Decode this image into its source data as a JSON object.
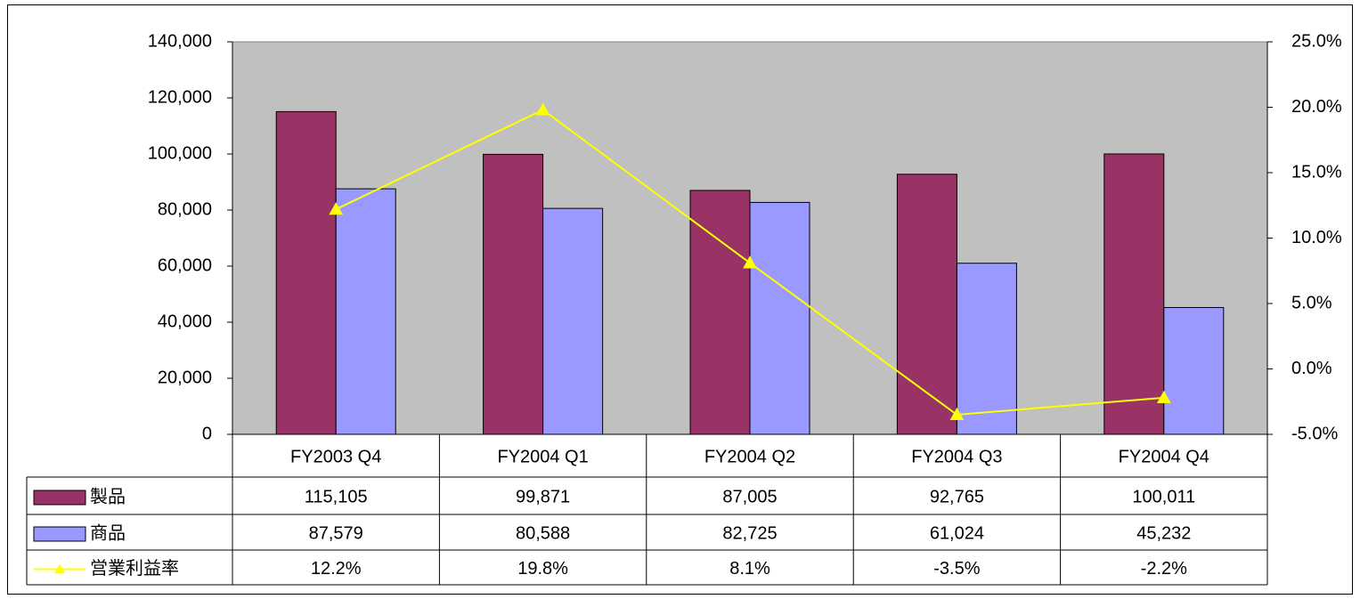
{
  "chart_data": {
    "type": "bar",
    "categories": [
      "FY2003 Q4",
      "FY2004 Q1",
      "FY2004 Q2",
      "FY2004 Q3",
      "FY2004 Q4"
    ],
    "series": [
      {
        "name": "製品",
        "color": "#993366",
        "values": [
          115105,
          99871,
          87005,
          92765,
          100011
        ],
        "value_labels": [
          "115,105",
          "99,871",
          "87,005",
          "92,765",
          "100,011"
        ]
      },
      {
        "name": "商品",
        "color": "#9999ff",
        "values": [
          87579,
          80588,
          82725,
          61024,
          45232
        ],
        "value_labels": [
          "87,579",
          "80,588",
          "82,725",
          "61,024",
          "45,232"
        ]
      },
      {
        "name": "営業利益率",
        "type": "line",
        "axis": "y2",
        "color": "#ffff00",
        "values": [
          12.2,
          19.8,
          8.1,
          -3.5,
          -2.2
        ],
        "value_labels": [
          "12.2%",
          "19.8%",
          "8.1%",
          "-3.5%",
          "-2.2%"
        ]
      }
    ],
    "ylim": [
      0,
      140000
    ],
    "yticks": [
      0,
      {
        "value": 20000,
        "label": "20,000"
      },
      {
        "value": 40000,
        "label": "40,000"
      },
      {
        "value": 60000,
        "label": "60,000"
      },
      {
        "value": 80000,
        "label": "80,000"
      },
      {
        "value": 100000,
        "label": "100,000"
      },
      {
        "value": 120000,
        "label": "120,000"
      },
      {
        "value": 140000,
        "label": "140,000"
      }
    ],
    "y2lim": [
      -5,
      25
    ],
    "y2ticks": [
      {
        "value": -5,
        "label": "-5.0%"
      },
      {
        "value": 0,
        "label": "0.0%"
      },
      {
        "value": 5,
        "label": "5.0%"
      },
      {
        "value": 10,
        "label": "10.0%"
      },
      {
        "value": 15,
        "label": "15.0%"
      },
      {
        "value": 20,
        "label": "20.0%"
      },
      {
        "value": 25,
        "label": "25.0%"
      }
    ],
    "grid": false,
    "plot_background": "#c0c0c0"
  }
}
